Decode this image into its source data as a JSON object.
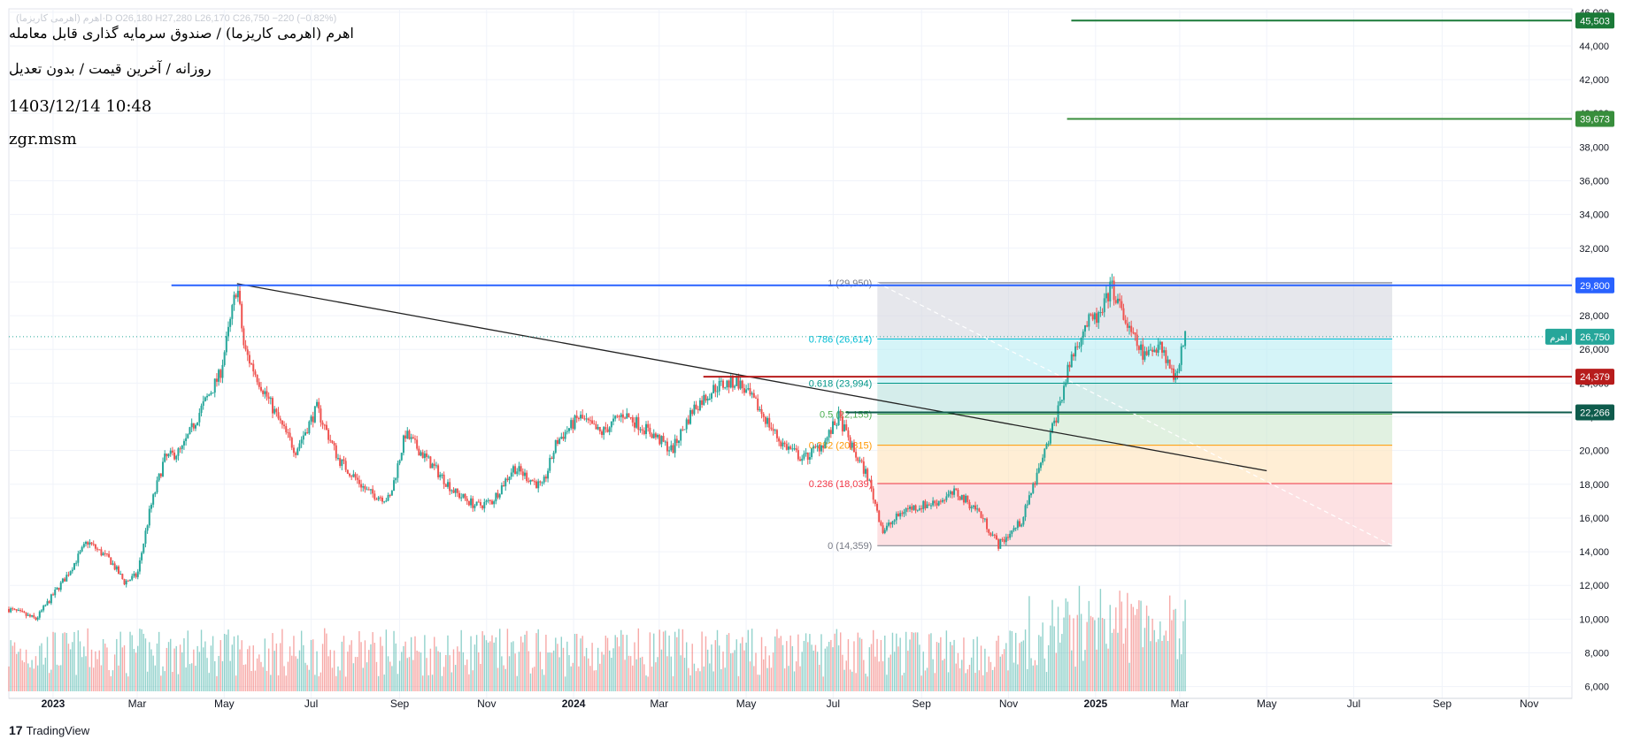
{
  "header": {
    "ohlc_text": "اهرم (اهرمی کاریزما)·D  O26,180  H27,280  L26,170  C26,750  −220 (−0.82%)",
    "title": "اهرم (اهرمی کاریزما) / صندوق سرمایه گذاری قابل معامله",
    "subtitle": "روزانه / آخرین قیمت / بدون تعدیل",
    "datetime": "1403/12/14 10:48",
    "author": "zgr.msm"
  },
  "brand": {
    "logo": "17",
    "name": "TradingView"
  },
  "colors": {
    "up": "#26a69a",
    "down": "#ef5350",
    "grid": "#f0f3fa",
    "axis_text": "#131722",
    "blue_line": "#2962ff",
    "red_line": "#b71c1c",
    "green_line": "#1b7a38",
    "dark_green_line": "#0e5b4c"
  },
  "chart_data": {
    "type": "candlestick",
    "symbol": "اهرم",
    "x_axis": {
      "start": "2022-12-01",
      "end": "2025-12-01",
      "tick_labels": [
        {
          "date": "2023-01-01",
          "label": "2023",
          "bold": true
        },
        {
          "date": "2023-03-01",
          "label": "Mar"
        },
        {
          "date": "2023-05-01",
          "label": "May"
        },
        {
          "date": "2023-07-01",
          "label": "Jul"
        },
        {
          "date": "2023-09-01",
          "label": "Sep"
        },
        {
          "date": "2023-11-01",
          "label": "Nov"
        },
        {
          "date": "2024-01-01",
          "label": "2024",
          "bold": true
        },
        {
          "date": "2024-03-01",
          "label": "Mar"
        },
        {
          "date": "2024-05-01",
          "label": "May"
        },
        {
          "date": "2024-07-01",
          "label": "Jul"
        },
        {
          "date": "2024-09-01",
          "label": "Sep"
        },
        {
          "date": "2024-11-01",
          "label": "Nov"
        },
        {
          "date": "2025-01-01",
          "label": "2025",
          "bold": true
        },
        {
          "date": "2025-03-01",
          "label": "Mar"
        },
        {
          "date": "2025-05-01",
          "label": "May"
        },
        {
          "date": "2025-07-01",
          "label": "Jul"
        },
        {
          "date": "2025-09-01",
          "label": "Sep"
        },
        {
          "date": "2025-11-01",
          "label": "Nov"
        }
      ]
    },
    "y_axis": {
      "min": 5300,
      "max": 46200,
      "ticks": [
        6000,
        8000,
        10000,
        12000,
        14000,
        16000,
        18000,
        20000,
        22000,
        24000,
        26000,
        28000,
        30000,
        32000,
        34000,
        36000,
        38000,
        40000,
        42000,
        44000,
        46000
      ],
      "tick_labels": [
        "6,000",
        "8,000",
        "10,000",
        "12,000",
        "14,000",
        "16,000",
        "18,000",
        "20,000",
        "22,000",
        "24,000",
        "26,000",
        "28,000",
        "30,000",
        "32,000",
        "34,000",
        "36,000",
        "38,000",
        "40,000",
        "42,000",
        "44,000",
        "46,000"
      ]
    },
    "price_path": [
      [
        "2022-12-01",
        10600
      ],
      [
        "2022-12-20",
        10000
      ],
      [
        "2023-01-10",
        12500
      ],
      [
        "2023-01-25",
        14600
      ],
      [
        "2023-02-10",
        13500
      ],
      [
        "2023-02-20",
        12200
      ],
      [
        "2023-03-01",
        12600
      ],
      [
        "2023-03-10",
        16500
      ],
      [
        "2023-03-20",
        19500
      ],
      [
        "2023-04-01",
        20000
      ],
      [
        "2023-04-15",
        22500
      ],
      [
        "2023-04-28",
        24500
      ],
      [
        "2023-05-05",
        27500
      ],
      [
        "2023-05-10",
        29900
      ],
      [
        "2023-05-15",
        26000
      ],
      [
        "2023-05-25",
        24200
      ],
      [
        "2023-06-10",
        21500
      ],
      [
        "2023-06-20",
        20000
      ],
      [
        "2023-07-05",
        22500
      ],
      [
        "2023-07-20",
        19500
      ],
      [
        "2023-08-10",
        17500
      ],
      [
        "2023-08-25",
        17100
      ],
      [
        "2023-09-05",
        21000
      ],
      [
        "2023-09-20",
        19500
      ],
      [
        "2023-10-10",
        17500
      ],
      [
        "2023-10-25",
        16700
      ],
      [
        "2023-11-05",
        17000
      ],
      [
        "2023-11-20",
        19000
      ],
      [
        "2023-12-10",
        17800
      ],
      [
        "2023-12-20",
        20500
      ],
      [
        "2024-01-05",
        22000
      ],
      [
        "2024-01-20",
        21000
      ],
      [
        "2024-02-05",
        22200
      ],
      [
        "2024-02-25",
        21000
      ],
      [
        "2024-03-10",
        20000
      ],
      [
        "2024-03-25",
        22500
      ],
      [
        "2024-04-10",
        23800
      ],
      [
        "2024-04-25",
        24100
      ],
      [
        "2024-05-10",
        22500
      ],
      [
        "2024-05-25",
        20500
      ],
      [
        "2024-06-10",
        19500
      ],
      [
        "2024-06-25",
        20500
      ],
      [
        "2024-07-05",
        22000
      ],
      [
        "2024-07-15",
        20000
      ],
      [
        "2024-07-25",
        18500
      ],
      [
        "2024-08-05",
        15200
      ],
      [
        "2024-08-20",
        16500
      ],
      [
        "2024-09-10",
        16900
      ],
      [
        "2024-09-25",
        17500
      ],
      [
        "2024-10-10",
        16500
      ],
      [
        "2024-10-25",
        14400
      ],
      [
        "2024-11-10",
        15800
      ],
      [
        "2024-11-25",
        19500
      ],
      [
        "2024-12-05",
        22200
      ],
      [
        "2024-12-15",
        25500
      ],
      [
        "2024-12-25",
        27500
      ],
      [
        "2025-01-05",
        28000
      ],
      [
        "2025-01-12",
        29800
      ],
      [
        "2025-01-25",
        27000
      ],
      [
        "2025-02-05",
        25500
      ],
      [
        "2025-02-15",
        26500
      ],
      [
        "2025-02-25",
        24300
      ],
      [
        "2025-03-05",
        26750
      ]
    ],
    "volume_scale_max": 10000,
    "horizontal_lines": [
      {
        "name": "resistance-45503",
        "value": 45503,
        "from": "2024-12-15",
        "color": "#1b7a38",
        "label": "45,503"
      },
      {
        "name": "resistance-39673",
        "value": 39673,
        "from": "2024-12-12",
        "color": "#388e3c",
        "label": "39,673"
      },
      {
        "name": "resistance-29800",
        "value": 29800,
        "from": "2023-03-25",
        "color": "#2962ff",
        "label": "29,800"
      },
      {
        "name": "support-24379",
        "value": 24379,
        "from": "2024-04-01",
        "color": "#b71c1c",
        "label": "24,379"
      },
      {
        "name": "support-22266",
        "value": 22266,
        "from": "2024-07-10",
        "color": "#0e5b4c",
        "label": "22,266"
      }
    ],
    "last_price": {
      "value": 26750,
      "label": "26,750",
      "symbol_tag": "اهرم",
      "color": "#26a69a"
    },
    "trendline": {
      "from": [
        "2023-05-10",
        29900
      ],
      "to": [
        "2025-05-01",
        18800
      ]
    },
    "fibonacci": {
      "from": "2024-08-01",
      "to": "2025-07-28",
      "diagonal": {
        "start": [
          "2024-08-01",
          29950
        ],
        "end": [
          "2025-07-28",
          14359
        ]
      },
      "levels": [
        {
          "ratio": "1",
          "value": 29950,
          "label": "1 (29,950)",
          "color": "#787b86",
          "fill": "#d1d4dc"
        },
        {
          "ratio": "0.786",
          "value": 26614,
          "label": "0.786 (26,614)",
          "color": "#00bcd4",
          "fill": "#b2ebf2"
        },
        {
          "ratio": "0.618",
          "value": 23994,
          "label": "0.618 (23,994)",
          "color": "#009688",
          "fill": "#b2dfdb"
        },
        {
          "ratio": "0.5",
          "value": 22155,
          "label": "0.5 (22,155)",
          "color": "#4caf50",
          "fill": "#c8e6c9"
        },
        {
          "ratio": "0.382",
          "value": 20315,
          "label": "0.382 (20,315)",
          "color": "#ff9800",
          "fill": "#ffe0b2"
        },
        {
          "ratio": "0.236",
          "value": 18039,
          "label": "0.236 (18,039)",
          "color": "#f23645",
          "fill": "#fbc9cc"
        },
        {
          "ratio": "0",
          "value": 14359,
          "label": "0 (14,359)",
          "color": "#787b86",
          "fill": null
        }
      ]
    }
  }
}
